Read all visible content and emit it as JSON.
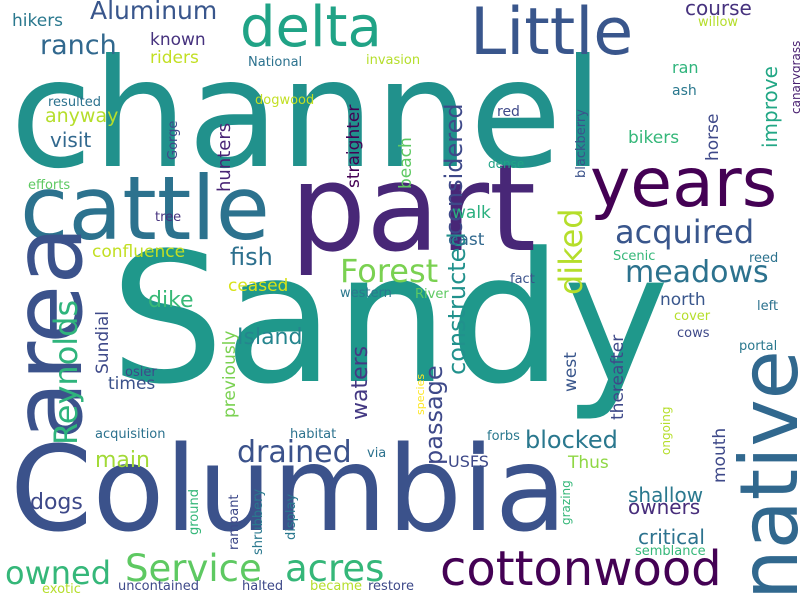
{
  "words": [
    {
      "text": "channel",
      "color": "#21918c"
    },
    {
      "text": "Sandy",
      "color": "#1f988b"
    },
    {
      "text": "Columbia",
      "color": "#3b528b"
    },
    {
      "text": "part",
      "color": "#482777"
    },
    {
      "text": "cattle",
      "color": "#2c728e"
    },
    {
      "text": "area",
      "color": "#3b528b"
    },
    {
      "text": "native",
      "color": "#31688e"
    },
    {
      "text": "years",
      "color": "#440154"
    },
    {
      "text": "Little",
      "color": "#39568c"
    },
    {
      "text": "delta",
      "color": "#20a386"
    },
    {
      "text": "cottonwood",
      "color": "#440154"
    },
    {
      "text": "Service",
      "color": "#5ec962"
    },
    {
      "text": "acres",
      "color": "#35b779"
    },
    {
      "text": "Reynolds",
      "color": "#2fb47c"
    },
    {
      "text": "Forest",
      "color": "#7ad151"
    },
    {
      "text": "acquired",
      "color": "#39568c"
    },
    {
      "text": "meadows",
      "color": "#2c728e"
    },
    {
      "text": "drained",
      "color": "#3b528b"
    },
    {
      "text": "diked",
      "color": "#b5de2b"
    },
    {
      "text": "owned",
      "color": "#35b779"
    },
    {
      "text": "ranch",
      "color": "#31688e"
    },
    {
      "text": "Aluminum",
      "color": "#39568c"
    },
    {
      "text": "considered",
      "color": "#3e4989"
    },
    {
      "text": "constructed",
      "color": "#21918c"
    },
    {
      "text": "blocked",
      "color": "#2a788e"
    },
    {
      "text": "passage",
      "color": "#3e4989"
    },
    {
      "text": "waters",
      "color": "#443983"
    },
    {
      "text": "fish",
      "color": "#2d708e"
    },
    {
      "text": "Island",
      "color": "#25858e"
    },
    {
      "text": "dike",
      "color": "#38b977"
    },
    {
      "text": "main",
      "color": "#a2da37"
    },
    {
      "text": "dogs",
      "color": "#3e4989"
    },
    {
      "text": "shallow",
      "color": "#2a788e"
    },
    {
      "text": "critical",
      "color": "#2c728e"
    },
    {
      "text": "owners",
      "color": "#472d7b"
    },
    {
      "text": "improve",
      "color": "#22a785"
    },
    {
      "text": "course",
      "color": "#46327e"
    },
    {
      "text": "visit",
      "color": "#31688e"
    },
    {
      "text": "anyway",
      "color": "#b5de2b"
    },
    {
      "text": "hikers",
      "color": "#2a788e"
    },
    {
      "text": "known",
      "color": "#46327e"
    },
    {
      "text": "riders",
      "color": "#c2df23"
    },
    {
      "text": "bikers",
      "color": "#35b779"
    },
    {
      "text": "horse",
      "color": "#3e4989"
    },
    {
      "text": "hunters",
      "color": "#482475"
    },
    {
      "text": "straighter",
      "color": "#440154"
    },
    {
      "text": "beach",
      "color": "#5ec962"
    },
    {
      "text": "walk",
      "color": "#2ab07f"
    },
    {
      "text": "east",
      "color": "#31688e"
    },
    {
      "text": "north",
      "color": "#39568c"
    },
    {
      "text": "ceased",
      "color": "#d8e219"
    },
    {
      "text": "previously",
      "color": "#7ad151"
    },
    {
      "text": "Sundial",
      "color": "#3e4989"
    },
    {
      "text": "times",
      "color": "#3b528b"
    },
    {
      "text": "west",
      "color": "#39568c"
    },
    {
      "text": "thereafter",
      "color": "#3e4989"
    },
    {
      "text": "mouth",
      "color": "#3e4989"
    },
    {
      "text": "Thus",
      "color": "#8fd744"
    },
    {
      "text": "USFS",
      "color": "#3e4989"
    },
    {
      "text": "confluence",
      "color": "#c2df23"
    },
    {
      "text": "ran",
      "color": "#2fb47c"
    },
    {
      "text": "ash",
      "color": "#2a788e"
    },
    {
      "text": "red",
      "color": "#3e4989"
    },
    {
      "text": "dense",
      "color": "#20a386"
    },
    {
      "text": "blackberry",
      "color": "#3b528b"
    },
    {
      "text": "National",
      "color": "#2c728e"
    },
    {
      "text": "invasion",
      "color": "#b5de2b"
    },
    {
      "text": "dogwood",
      "color": "#c2df23"
    },
    {
      "text": "resulted",
      "color": "#2c728e"
    },
    {
      "text": "Gorge",
      "color": "#3e4989"
    },
    {
      "text": "efforts",
      "color": "#5ec962"
    },
    {
      "text": "tree",
      "color": "#46327e"
    },
    {
      "text": "willow",
      "color": "#b5de2b"
    },
    {
      "text": "canarygrass",
      "color": "#481f70"
    },
    {
      "text": "reed",
      "color": "#2c728e"
    },
    {
      "text": "Scenic",
      "color": "#35b779"
    },
    {
      "text": "fact",
      "color": "#3b528b"
    },
    {
      "text": "left",
      "color": "#2c728e"
    },
    {
      "text": "western",
      "color": "#2a788e"
    },
    {
      "text": "River",
      "color": "#5ec962"
    },
    {
      "text": "cover",
      "color": "#b5de2b"
    },
    {
      "text": "cows",
      "color": "#3e4989"
    },
    {
      "text": "portal",
      "color": "#2a788e"
    },
    {
      "text": "osier",
      "color": "#3e4989"
    },
    {
      "text": "species",
      "color": "#fde725"
    },
    {
      "text": "acquisition",
      "color": "#2c728e"
    },
    {
      "text": "habitat",
      "color": "#2c728e"
    },
    {
      "text": "forbs",
      "color": "#2a788e"
    },
    {
      "text": "ongoing",
      "color": "#b5de2b"
    },
    {
      "text": "via",
      "color": "#2c728e"
    },
    {
      "text": "grazing",
      "color": "#35b779"
    },
    {
      "text": "ground",
      "color": "#35b779"
    },
    {
      "text": "rampant",
      "color": "#3e4989"
    },
    {
      "text": "shrubbery",
      "color": "#2a788e"
    },
    {
      "text": "display",
      "color": "#2a788e"
    },
    {
      "text": "semblance",
      "color": "#35b779"
    },
    {
      "text": "exotic",
      "color": "#b5de2b"
    },
    {
      "text": "uncontained",
      "color": "#3e4989"
    },
    {
      "text": "halted",
      "color": "#3e4989"
    },
    {
      "text": "became",
      "color": "#b5de2b"
    },
    {
      "text": "restore",
      "color": "#3e4989"
    }
  ]
}
